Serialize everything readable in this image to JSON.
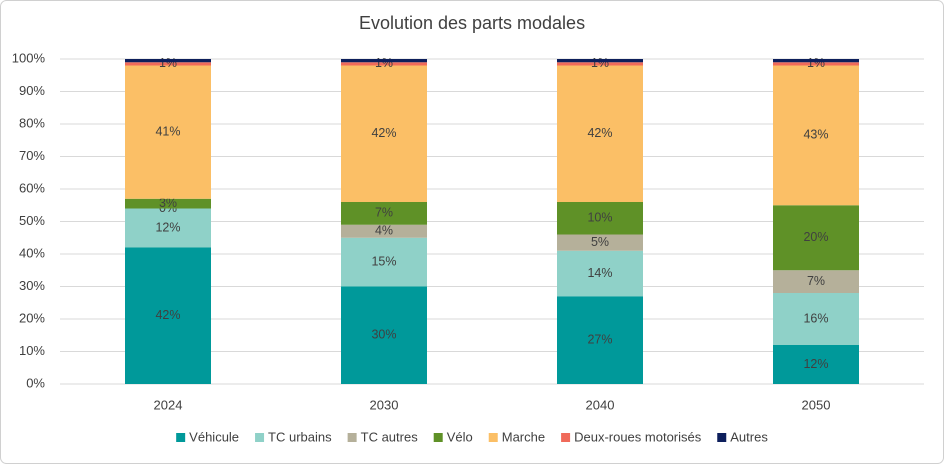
{
  "chart_data": {
    "type": "stacked_bar",
    "title": "Evolution des parts modales",
    "categories": [
      "2024",
      "2030",
      "2040",
      "2050"
    ],
    "series": [
      {
        "name": "Véhicule",
        "color": "#00999a",
        "values": [
          42,
          30,
          27,
          12
        ],
        "value_labels": [
          "42%",
          "30%",
          "27%",
          "12%"
        ]
      },
      {
        "name": "TC urbains",
        "color": "#8fd1c8",
        "values": [
          12,
          15,
          14,
          16
        ],
        "value_labels": [
          "12%",
          "15%",
          "14%",
          "16%"
        ]
      },
      {
        "name": "TC autres",
        "color": "#b5b09a",
        "values": [
          0,
          4,
          5,
          7
        ],
        "value_labels": [
          "0%",
          "4%",
          "5%",
          "7%"
        ]
      },
      {
        "name": "Vélo",
        "color": "#5f9127",
        "values": [
          3,
          7,
          10,
          20
        ],
        "value_labels": [
          "3%",
          "7%",
          "10%",
          "20%"
        ]
      },
      {
        "name": "Marche",
        "color": "#fbbf66",
        "values": [
          41,
          42,
          42,
          43
        ],
        "value_labels": [
          "41%",
          "42%",
          "42%",
          "43%"
        ]
      },
      {
        "name": "Deux-roues motorisés",
        "color": "#f06a5a",
        "values": [
          1,
          1,
          1,
          1
        ],
        "value_labels": [
          "1%",
          "1%",
          "1%",
          "1%"
        ]
      },
      {
        "name": "Autres",
        "color": "#0d1f5c",
        "values": [
          1,
          1,
          1,
          1
        ]
      }
    ],
    "ylim": [
      0,
      100
    ],
    "yticks": [
      {
        "value": 0,
        "label": "0%"
      },
      {
        "value": 10,
        "label": "10%"
      },
      {
        "value": 20,
        "label": "20%"
      },
      {
        "value": 30,
        "label": "30%"
      },
      {
        "value": 40,
        "label": "40%"
      },
      {
        "value": 50,
        "label": "50%"
      },
      {
        "value": 60,
        "label": "60%"
      },
      {
        "value": 70,
        "label": "70%"
      },
      {
        "value": 80,
        "label": "80%"
      },
      {
        "value": 90,
        "label": "90%"
      },
      {
        "value": 100,
        "label": "100%"
      }
    ],
    "grid": true,
    "legend": "bottom"
  }
}
